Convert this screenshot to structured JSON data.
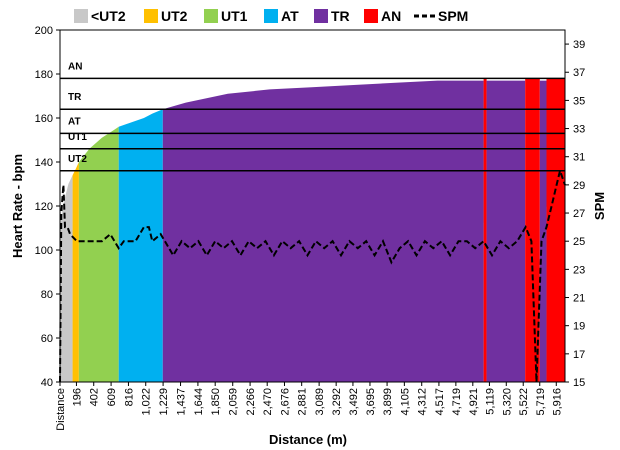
{
  "chart_data": {
    "type": "area",
    "xlabel": "Distance (m)",
    "ylabel": "Heart Rate - bpm",
    "y2label": "SPM",
    "ylim": [
      40,
      200
    ],
    "y_ticks": [
      40,
      60,
      80,
      100,
      120,
      140,
      160,
      180,
      200
    ],
    "y2lim": [
      15,
      40
    ],
    "y2_ticks": [
      15,
      17,
      19,
      21,
      23,
      25,
      27,
      29,
      31,
      33,
      35,
      37,
      39
    ],
    "xlim": [
      0,
      6020
    ],
    "x_ticks": [
      {
        "label": "Distance",
        "x": 0
      },
      {
        "label": "196",
        "x": 196
      },
      {
        "label": "402",
        "x": 402
      },
      {
        "label": "609",
        "x": 609
      },
      {
        "label": "816",
        "x": 816
      },
      {
        "label": "1,022",
        "x": 1022
      },
      {
        "label": "1,229",
        "x": 1229
      },
      {
        "label": "1,437",
        "x": 1437
      },
      {
        "label": "1,644",
        "x": 1644
      },
      {
        "label": "1,850",
        "x": 1850
      },
      {
        "label": "2,059",
        "x": 2059
      },
      {
        "label": "2,266",
        "x": 2266
      },
      {
        "label": "2,470",
        "x": 2470
      },
      {
        "label": "2,676",
        "x": 2676
      },
      {
        "label": "2,881",
        "x": 2881
      },
      {
        "label": "3,089",
        "x": 3089
      },
      {
        "label": "3,292",
        "x": 3292
      },
      {
        "label": "3,492",
        "x": 3492
      },
      {
        "label": "3,695",
        "x": 3695
      },
      {
        "label": "3,899",
        "x": 3899
      },
      {
        "label": "4,105",
        "x": 4105
      },
      {
        "label": "4,312",
        "x": 4312
      },
      {
        "label": "4,517",
        "x": 4517
      },
      {
        "label": "4,719",
        "x": 4719
      },
      {
        "label": "4,921",
        "x": 4921
      },
      {
        "label": "5,119",
        "x": 5119
      },
      {
        "label": "5,320",
        "x": 5320
      },
      {
        "label": "5,522",
        "x": 5522
      },
      {
        "label": "5,719",
        "x": 5719
      },
      {
        "label": "5,916",
        "x": 5916
      }
    ],
    "legend_position": "top",
    "legend": [
      {
        "name": "<UT2",
        "color": "#c8c8c8",
        "style": "box"
      },
      {
        "name": "UT2",
        "color": "#ffc000",
        "style": "box"
      },
      {
        "name": "UT1",
        "color": "#92d050",
        "style": "box"
      },
      {
        "name": "AT",
        "color": "#00b0f0",
        "style": "box"
      },
      {
        "name": "TR",
        "color": "#7030a0",
        "style": "box"
      },
      {
        "name": "AN",
        "color": "#ff0000",
        "style": "box"
      },
      {
        "name": "SPM",
        "color": "#000000",
        "style": "dash"
      }
    ],
    "zone_lines": [
      {
        "label": "AN",
        "hr": 178
      },
      {
        "label": "TR",
        "hr": 164
      },
      {
        "label": "AT",
        "hr": 153
      },
      {
        "label": "UT1",
        "hr": 146
      },
      {
        "label": "UT2",
        "hr": 136
      }
    ],
    "heart_rate_segments": [
      {
        "zone": "<UT2",
        "color": "#c8c8c8",
        "x_start": 0,
        "x_end": 150,
        "hr": [
          [
            0,
            40
          ],
          [
            10,
            112
          ],
          [
            30,
            118
          ],
          [
            60,
            124
          ],
          [
            100,
            130
          ],
          [
            150,
            134
          ]
        ]
      },
      {
        "zone": "UT2",
        "color": "#ffc000",
        "x_start": 150,
        "x_end": 225,
        "hr": [
          [
            150,
            134
          ],
          [
            190,
            137
          ],
          [
            225,
            140
          ]
        ]
      },
      {
        "zone": "UT1",
        "color": "#92d050",
        "x_start": 225,
        "x_end": 700,
        "hr": [
          [
            225,
            140
          ],
          [
            350,
            146
          ],
          [
            500,
            151
          ],
          [
            620,
            154
          ],
          [
            700,
            156
          ]
        ]
      },
      {
        "zone": "AT",
        "color": "#00b0f0",
        "x_start": 700,
        "x_end": 1225,
        "hr": [
          [
            700,
            156
          ],
          [
            850,
            158
          ],
          [
            1000,
            160
          ],
          [
            1100,
            162
          ],
          [
            1225,
            164
          ]
        ]
      },
      {
        "zone": "TR",
        "color": "#7030a0",
        "x_start": 1225,
        "x_end": 5050,
        "hr": [
          [
            1225,
            164
          ],
          [
            1500,
            167
          ],
          [
            2000,
            171
          ],
          [
            2500,
            173
          ],
          [
            3000,
            174
          ],
          [
            3500,
            175
          ],
          [
            4000,
            176
          ],
          [
            4500,
            177
          ],
          [
            5050,
            177
          ]
        ]
      },
      {
        "zone": "AN",
        "color": "#ff0000",
        "x_start": 5050,
        "x_end": 5085,
        "hr": [
          [
            5050,
            178
          ],
          [
            5085,
            178
          ]
        ]
      },
      {
        "zone": "TR",
        "color": "#7030a0",
        "x_start": 5085,
        "x_end": 5545,
        "hr": [
          [
            5085,
            177
          ],
          [
            5300,
            177
          ],
          [
            5545,
            177
          ]
        ]
      },
      {
        "zone": "AN",
        "color": "#ff0000",
        "x_start": 5545,
        "x_end": 5720,
        "hr": [
          [
            5545,
            178
          ],
          [
            5620,
            178
          ],
          [
            5720,
            178
          ]
        ]
      },
      {
        "zone": "TR",
        "color": "#7030a0",
        "x_start": 5720,
        "x_end": 5800,
        "hr": [
          [
            5720,
            177
          ],
          [
            5800,
            177
          ]
        ]
      },
      {
        "zone": "AN",
        "color": "#ff0000",
        "x_start": 5800,
        "x_end": 6020,
        "hr": [
          [
            5800,
            178
          ],
          [
            6020,
            178
          ]
        ]
      }
    ],
    "series": [
      {
        "name": "SPM",
        "points": [
          [
            0,
            15
          ],
          [
            15,
            27
          ],
          [
            40,
            29
          ],
          [
            60,
            26
          ],
          [
            90,
            26
          ],
          [
            120,
            25.5
          ],
          [
            200,
            25
          ],
          [
            300,
            25
          ],
          [
            400,
            25
          ],
          [
            500,
            25
          ],
          [
            600,
            25.5
          ],
          [
            650,
            25
          ],
          [
            700,
            24.5
          ],
          [
            760,
            25
          ],
          [
            820,
            25
          ],
          [
            900,
            25
          ],
          [
            1000,
            26
          ],
          [
            1060,
            26
          ],
          [
            1100,
            25
          ],
          [
            1200,
            25.5
          ],
          [
            1250,
            25
          ],
          [
            1350,
            24
          ],
          [
            1450,
            25
          ],
          [
            1550,
            24.5
          ],
          [
            1650,
            25
          ],
          [
            1750,
            24
          ],
          [
            1850,
            25
          ],
          [
            1950,
            24.5
          ],
          [
            2050,
            25
          ],
          [
            2150,
            24
          ],
          [
            2250,
            25
          ],
          [
            2350,
            24.5
          ],
          [
            2450,
            25
          ],
          [
            2550,
            24
          ],
          [
            2650,
            25
          ],
          [
            2750,
            24.5
          ],
          [
            2850,
            25
          ],
          [
            2950,
            24
          ],
          [
            3050,
            25
          ],
          [
            3150,
            24.5
          ],
          [
            3250,
            25
          ],
          [
            3350,
            24
          ],
          [
            3450,
            25
          ],
          [
            3550,
            24.5
          ],
          [
            3650,
            25
          ],
          [
            3750,
            24
          ],
          [
            3850,
            25
          ],
          [
            3950,
            23.5
          ],
          [
            4050,
            24.5
          ],
          [
            4150,
            25
          ],
          [
            4250,
            24
          ],
          [
            4350,
            25
          ],
          [
            4450,
            24.5
          ],
          [
            4550,
            25
          ],
          [
            4650,
            24
          ],
          [
            4750,
            25
          ],
          [
            4850,
            25
          ],
          [
            4950,
            24.5
          ],
          [
            5050,
            25
          ],
          [
            5150,
            24
          ],
          [
            5250,
            25
          ],
          [
            5350,
            24.5
          ],
          [
            5450,
            25
          ],
          [
            5550,
            26
          ],
          [
            5620,
            25
          ],
          [
            5680,
            15
          ],
          [
            5740,
            25
          ],
          [
            5800,
            26
          ],
          [
            5860,
            27.5
          ],
          [
            5920,
            29
          ],
          [
            5960,
            30
          ],
          [
            6020,
            29
          ]
        ]
      }
    ]
  }
}
